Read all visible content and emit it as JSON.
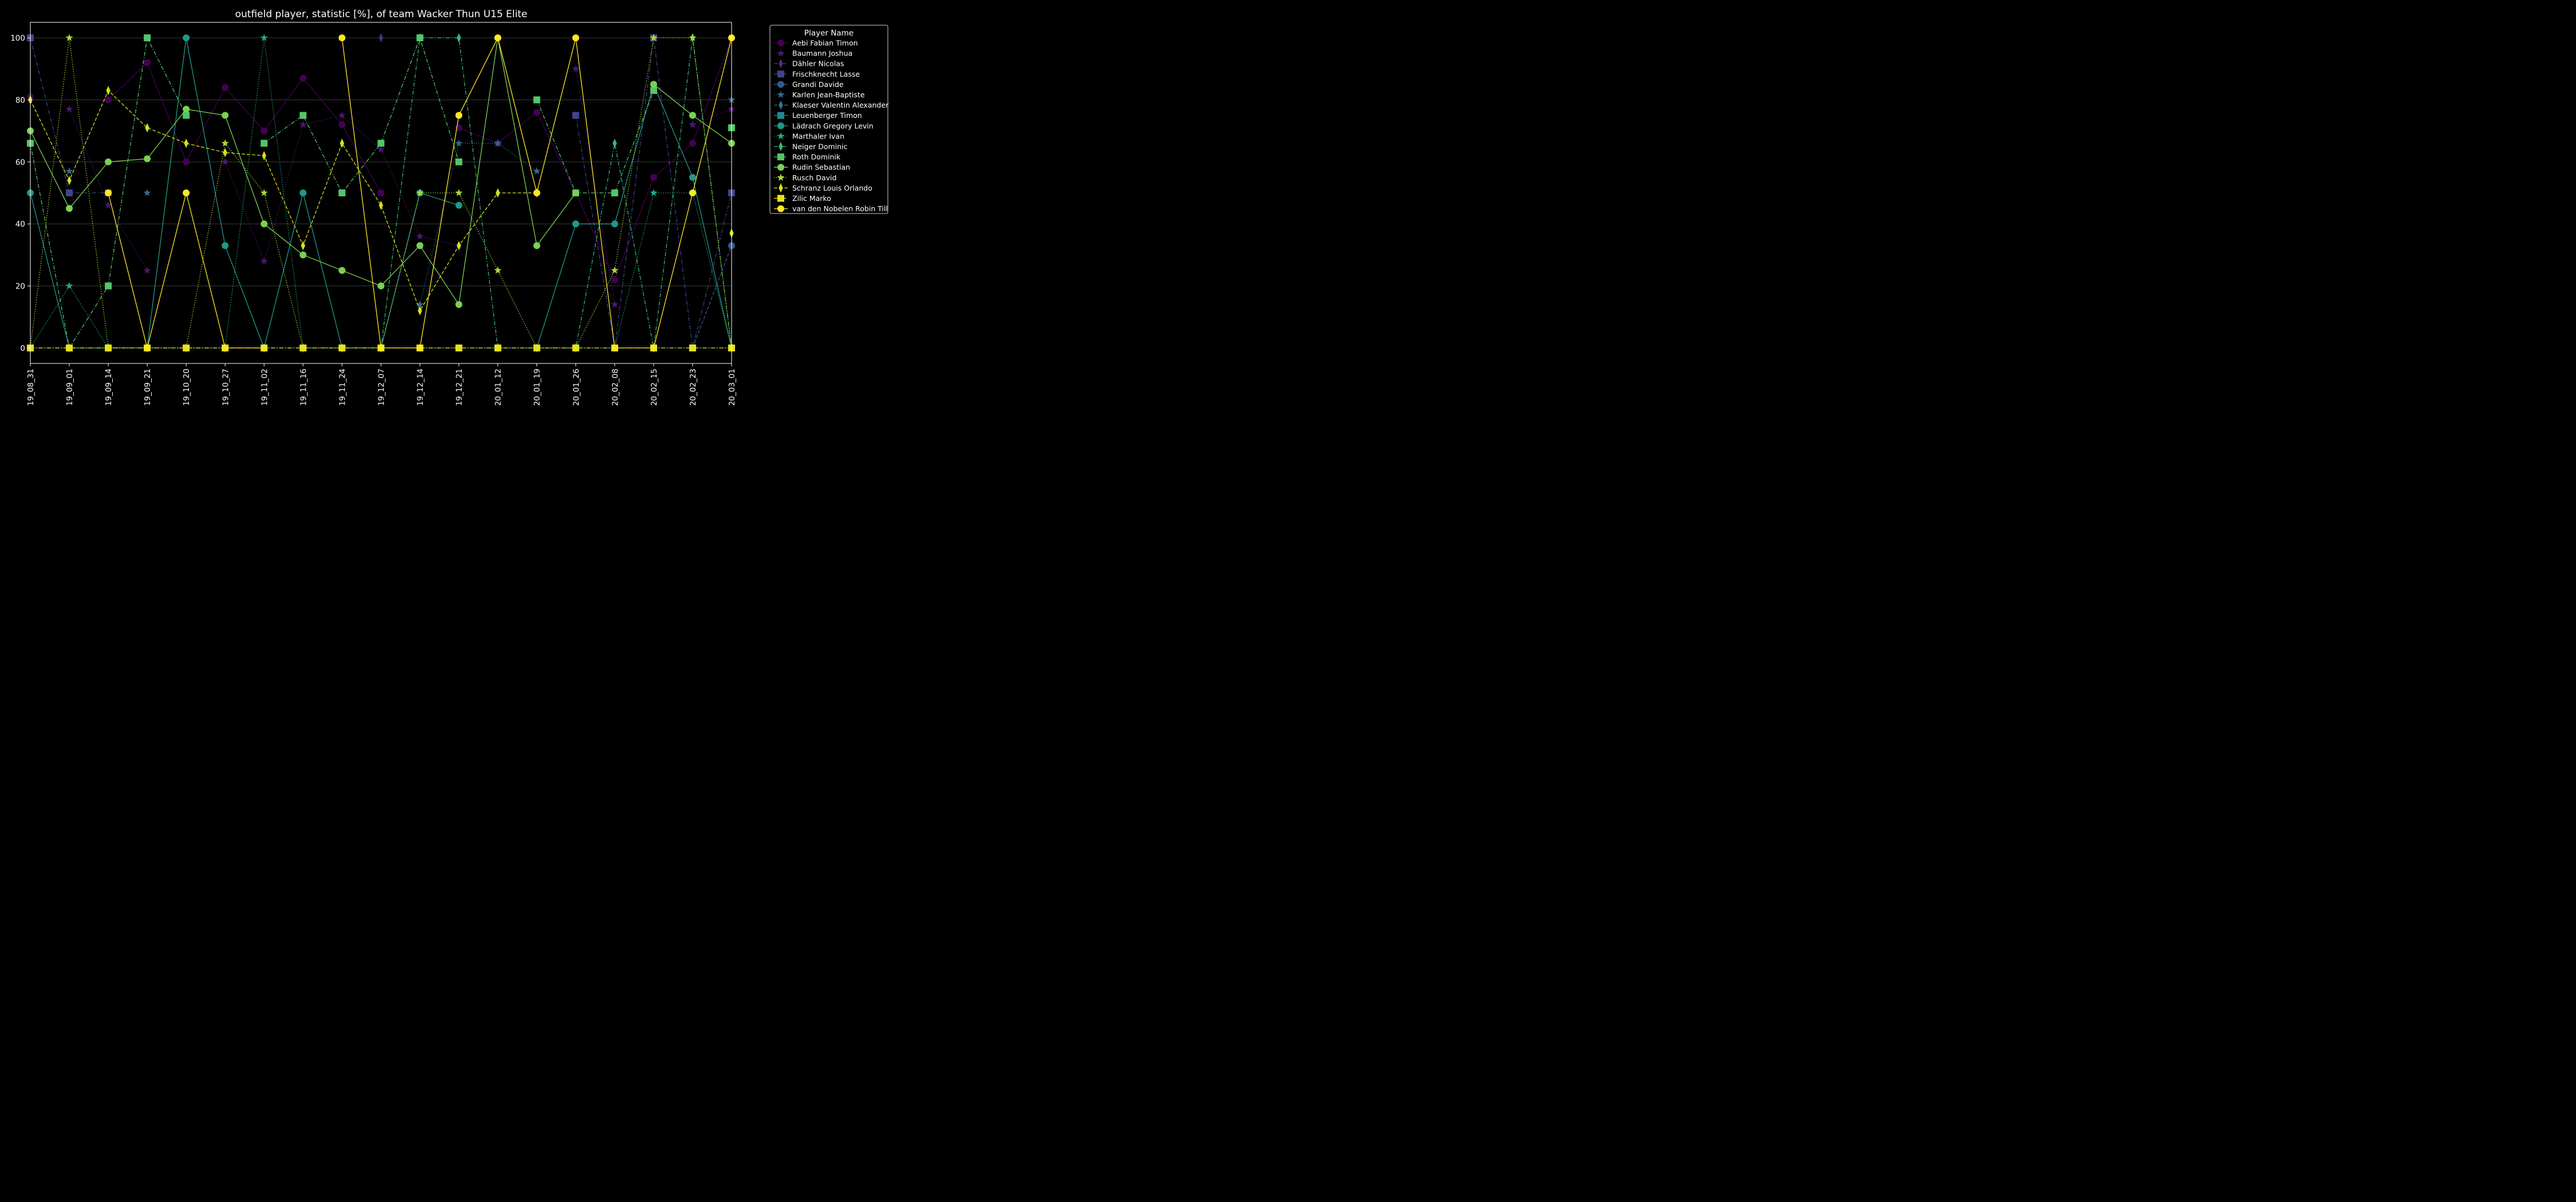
{
  "chart_data": {
    "type": "line",
    "title": "outfield player, statistic [%], of team Wacker Thun U15 Elite",
    "xlabel": "",
    "ylabel": "",
    "ylim": [
      -5,
      105
    ],
    "yticks": [
      0,
      20,
      40,
      60,
      80,
      100
    ],
    "grid": true,
    "legend_title": "Player Name",
    "legend_position": "outside-right-top",
    "x": [
      "19_08_31",
      "19_09_01",
      "19_09_14",
      "19_09_21",
      "19_10_20",
      "19_10_27",
      "19_11_02",
      "19_11_16",
      "19_11_24",
      "19_12_07",
      "19_12_14",
      "19_12_21",
      "20_01_12",
      "20_01_19",
      "20_01_26",
      "20_02_08",
      "20_02_15",
      "20_02_23",
      "20_03_01"
    ],
    "series": [
      {
        "name": "Aebi Fabian Timon",
        "color": "#440154",
        "marker": "circle",
        "dash": "solid",
        "values": [
          81,
          null,
          80,
          92,
          60,
          84,
          70,
          87,
          72,
          50,
          null,
          71,
          66,
          76,
          50,
          22,
          55,
          66,
          100
        ]
      },
      {
        "name": "Baumann Joshua",
        "color": "#481a6c",
        "marker": "star",
        "dash": "dotted",
        "values": [
          null,
          77,
          46,
          25,
          null,
          60,
          28,
          72,
          75,
          64,
          36,
          33,
          null,
          null,
          90,
          14,
          null,
          72,
          77
        ]
      },
      {
        "name": "Dähler Nicolas",
        "color": "#472f7d",
        "marker": "thin-diamond",
        "dash": "dashdot",
        "values": [
          null,
          null,
          null,
          null,
          null,
          null,
          null,
          null,
          null,
          100,
          null,
          null,
          null,
          null,
          null,
          null,
          null,
          null,
          null
        ]
      },
      {
        "name": "Frischknecht Lasse",
        "color": "#414487",
        "marker": "square",
        "dash": "dashdot",
        "values": [
          100,
          50,
          50,
          null,
          null,
          null,
          null,
          null,
          null,
          null,
          null,
          null,
          null,
          null,
          75,
          0,
          100,
          0,
          50
        ]
      },
      {
        "name": "Grandi Davide",
        "color": "#39568c",
        "marker": "circle",
        "dash": "dashed",
        "values": [
          null,
          null,
          null,
          null,
          null,
          null,
          null,
          null,
          null,
          null,
          null,
          null,
          null,
          null,
          null,
          null,
          null,
          0,
          33
        ]
      },
      {
        "name": "Karlen Jean-Baptiste",
        "color": "#31688e",
        "marker": "star",
        "dash": "dotted",
        "values": [
          null,
          57,
          null,
          50,
          null,
          null,
          null,
          null,
          null,
          null,
          14,
          66,
          66,
          57,
          null,
          null,
          null,
          null,
          80
        ]
      },
      {
        "name": "Klaeser Valentin Alexander",
        "color": "#2a788e",
        "marker": "thin-diamond",
        "dash": "dashed",
        "values": [
          null,
          null,
          null,
          null,
          null,
          null,
          null,
          null,
          null,
          null,
          null,
          null,
          null,
          null,
          null,
          null,
          null,
          null,
          null
        ]
      },
      {
        "name": "Leuenberger Timon",
        "color": "#23888e",
        "marker": "square",
        "dash": "solid",
        "values": [
          null,
          null,
          null,
          null,
          null,
          null,
          null,
          null,
          null,
          null,
          null,
          null,
          null,
          null,
          null,
          null,
          null,
          null,
          null
        ]
      },
      {
        "name": "Lädrach Gregory Levin",
        "color": "#1f988b",
        "marker": "circle",
        "dash": "solid",
        "values": [
          50,
          0,
          0,
          0,
          100,
          33,
          0,
          50,
          0,
          0,
          50,
          46,
          null,
          0,
          40,
          40,
          85,
          55,
          0
        ]
      },
      {
        "name": "Marthaler Ivan",
        "color": "#22a884",
        "marker": "star",
        "dash": "dotted",
        "values": [
          0,
          20,
          0,
          0,
          0,
          0,
          100,
          0,
          0,
          0,
          0,
          0,
          0,
          0,
          0,
          0,
          50,
          50,
          0
        ]
      },
      {
        "name": "Neiger Dominic",
        "color": "#35b779",
        "marker": "thin-diamond",
        "dash": "dashdot",
        "values": [
          0,
          0,
          0,
          0,
          0,
          0,
          0,
          0,
          0,
          0,
          100,
          100,
          0,
          0,
          0,
          66,
          0,
          100,
          0
        ]
      },
      {
        "name": "Roth Dominik",
        "color": "#54c568",
        "marker": "square",
        "dash": "dashdot",
        "values": [
          66,
          0,
          20,
          100,
          75,
          null,
          66,
          75,
          50,
          66,
          100,
          60,
          null,
          80,
          50,
          50,
          83,
          null,
          71
        ]
      },
      {
        "name": "Rudin Sebastian",
        "color": "#7ad151",
        "marker": "circle",
        "dash": "solid",
        "values": [
          70,
          45,
          60,
          61,
          77,
          75,
          40,
          30,
          25,
          20,
          33,
          14,
          100,
          33,
          50,
          null,
          85,
          75,
          66
        ]
      },
      {
        "name": "Rusch David",
        "color": "#a5db36",
        "marker": "star",
        "dash": "dotted",
        "values": [
          0,
          100,
          0,
          0,
          0,
          66,
          50,
          0,
          0,
          0,
          50,
          50,
          25,
          0,
          0,
          25,
          100,
          100,
          0
        ]
      },
      {
        "name": "Schranz Louis Orlando",
        "color": "#d2e21b",
        "marker": "thin-diamond",
        "dash": "dashed",
        "values": [
          80,
          54,
          83,
          71,
          66,
          63,
          62,
          33,
          66,
          46,
          12,
          33,
          50,
          50,
          null,
          null,
          null,
          null,
          37
        ]
      },
      {
        "name": "Zilic Marko",
        "color": "#e6e31d",
        "marker": "square",
        "dash": "dashdot",
        "values": [
          0,
          0,
          0,
          0,
          0,
          0,
          0,
          0,
          0,
          0,
          0,
          0,
          0,
          0,
          0,
          0,
          0,
          0,
          0
        ]
      },
      {
        "name": "van den Nobelen Robin Till",
        "color": "#fde725",
        "marker": "circle",
        "dash": "solid",
        "values": [
          null,
          null,
          50,
          0,
          50,
          0,
          0,
          null,
          100,
          0,
          0,
          75,
          100,
          50,
          100,
          0,
          0,
          50,
          100
        ]
      }
    ]
  }
}
